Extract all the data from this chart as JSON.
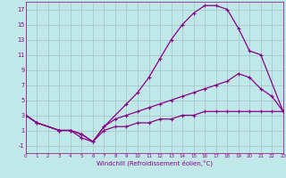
{
  "xlabel": "Windchill (Refroidissement éolien,°C)",
  "bg_color": "#c0e8e8",
  "line_color": "#880088",
  "grid_color": "#99bbbb",
  "xlim": [
    0,
    23
  ],
  "ylim": [
    -2,
    18
  ],
  "xticks": [
    0,
    1,
    2,
    3,
    4,
    5,
    6,
    7,
    8,
    9,
    10,
    11,
    12,
    13,
    14,
    15,
    16,
    17,
    18,
    19,
    20,
    21,
    22,
    23
  ],
  "yticks": [
    -1,
    1,
    3,
    5,
    7,
    9,
    11,
    13,
    15,
    17
  ],
  "series": [
    {
      "x": [
        0,
        1,
        3,
        4,
        5,
        6,
        7,
        9,
        10,
        11,
        12,
        13,
        14,
        15,
        16,
        17,
        18,
        19,
        20,
        21,
        23
      ],
      "y": [
        3,
        2,
        1,
        1,
        0,
        -0.5,
        1.5,
        4.5,
        6,
        8,
        10.5,
        13,
        15,
        16.5,
        17.5,
        17.5,
        17,
        14.5,
        11.5,
        11,
        3.5
      ]
    },
    {
      "x": [
        0,
        1,
        3,
        4,
        5,
        6,
        7,
        8,
        9,
        10,
        11,
        12,
        13,
        14,
        15,
        16,
        17,
        18,
        19,
        20,
        21,
        22,
        23
      ],
      "y": [
        3,
        2,
        1,
        1,
        0.5,
        -0.5,
        1.5,
        2.5,
        3,
        3.5,
        4,
        4.5,
        5,
        5.5,
        6,
        6.5,
        7,
        7.5,
        8.5,
        8,
        6.5,
        5.5,
        3.5
      ]
    },
    {
      "x": [
        0,
        1,
        3,
        4,
        5,
        6,
        7,
        8,
        9,
        10,
        11,
        12,
        13,
        14,
        15,
        16,
        17,
        18,
        19,
        20,
        21,
        22,
        23
      ],
      "y": [
        3,
        2,
        1,
        1,
        0.5,
        -0.5,
        1.0,
        1.5,
        1.5,
        2.0,
        2.0,
        2.5,
        2.5,
        3.0,
        3.0,
        3.5,
        3.5,
        3.5,
        3.5,
        3.5,
        3.5,
        3.5,
        3.5
      ]
    }
  ]
}
